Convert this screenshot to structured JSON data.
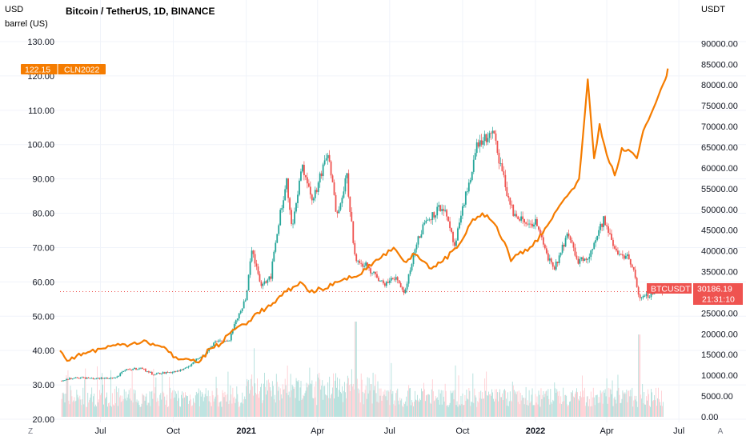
{
  "header": {
    "title": "Bitcoin / TetherUS, 1D, BINANCE",
    "left_currency": "USD",
    "left_unit": "barrel (US)",
    "right_currency": "USDT"
  },
  "footer": {
    "left_button": "Z",
    "right_button": "A"
  },
  "colors": {
    "oil_line": "#f57c00",
    "candle_up": "#26a69a",
    "candle_down": "#ef5350",
    "volume_up": "#b2dfdb",
    "volume_down": "#ffcdd2",
    "grid": "#f0f3fa",
    "axis_text": "#131722",
    "btc_label_bg": "#ef5350",
    "oil_label_bg": "#f57c00"
  },
  "chart_data": {
    "type": "line",
    "title": "Bitcoin / TetherUS, 1D, BINANCE",
    "x_ticks": [
      "Jul",
      "Oct",
      "2021",
      "Apr",
      "Jul",
      "Oct",
      "2022",
      "Apr",
      "Jul"
    ],
    "x_tick_dates": [
      "2020-07-01",
      "2020-10-01",
      "2021-01-01",
      "2021-04-01",
      "2021-07-01",
      "2021-10-01",
      "2022-01-01",
      "2022-04-01",
      "2022-07-01"
    ],
    "x_range": [
      "2020-05-11",
      "2022-07-15"
    ],
    "left_axis": {
      "unit": "USD / barrel (US)",
      "ticks": [
        "130.00",
        "120.00",
        "110.00",
        "100.00",
        "90.00",
        "80.00",
        "70.00",
        "60.00",
        "50.00",
        "40.00",
        "30.00",
        "20.00"
      ],
      "ylim": [
        20,
        130
      ]
    },
    "right_axis": {
      "unit": "USDT",
      "ticks": [
        "90000.00",
        "85000.00",
        "80000.00",
        "75000.00",
        "70000.00",
        "65000.00",
        "60000.00",
        "55000.00",
        "50000.00",
        "45000.00",
        "40000.00",
        "35000.00",
        "30000.00",
        "25000.00",
        "20000.00",
        "15000.00",
        "10000.00",
        "5000.00",
        "0.00"
      ],
      "ylim": [
        0,
        92000
      ]
    },
    "series": [
      {
        "name": "CLN2022",
        "axis": "left",
        "type": "line",
        "last_value": "122.15",
        "points": [
          [
            "2020-05-11",
            40
          ],
          [
            "2020-05-20",
            37
          ],
          [
            "2020-06-01",
            38.5
          ],
          [
            "2020-06-15",
            39.5
          ],
          [
            "2020-07-01",
            40.5
          ],
          [
            "2020-07-20",
            41.5
          ],
          [
            "2020-08-10",
            42
          ],
          [
            "2020-08-25",
            43
          ],
          [
            "2020-09-08",
            41.5
          ],
          [
            "2020-09-22",
            40.5
          ],
          [
            "2020-10-01",
            38
          ],
          [
            "2020-10-20",
            37.5
          ],
          [
            "2020-11-02",
            36.5
          ],
          [
            "2020-11-16",
            40.5
          ],
          [
            "2020-11-30",
            42
          ],
          [
            "2020-12-15",
            46
          ],
          [
            "2021-01-04",
            48.5
          ],
          [
            "2021-01-15",
            51
          ],
          [
            "2021-02-01",
            53
          ],
          [
            "2021-02-15",
            56
          ],
          [
            "2021-03-01",
            58.5
          ],
          [
            "2021-03-10",
            60
          ],
          [
            "2021-03-22",
            57
          ],
          [
            "2021-04-05",
            58
          ],
          [
            "2021-04-20",
            59
          ],
          [
            "2021-05-05",
            61
          ],
          [
            "2021-05-20",
            61.5
          ],
          [
            "2021-06-05",
            65
          ],
          [
            "2021-06-20",
            67
          ],
          [
            "2021-07-06",
            70
          ],
          [
            "2021-07-19",
            66
          ],
          [
            "2021-08-02",
            68
          ],
          [
            "2021-08-20",
            64
          ],
          [
            "2021-09-06",
            66
          ],
          [
            "2021-09-27",
            71
          ],
          [
            "2021-10-11",
            77
          ],
          [
            "2021-10-26",
            80
          ],
          [
            "2021-11-10",
            77
          ],
          [
            "2021-11-26",
            70
          ],
          [
            "2021-12-01",
            66
          ],
          [
            "2021-12-10",
            68
          ],
          [
            "2021-12-22",
            69
          ],
          [
            "2022-01-10",
            74
          ],
          [
            "2022-01-25",
            80
          ],
          [
            "2022-02-10",
            85
          ],
          [
            "2022-02-25",
            90
          ],
          [
            "2022-03-08",
            119
          ],
          [
            "2022-03-16",
            96
          ],
          [
            "2022-03-23",
            106
          ],
          [
            "2022-04-01",
            97
          ],
          [
            "2022-04-11",
            91
          ],
          [
            "2022-04-20",
            99
          ],
          [
            "2022-05-01",
            98
          ],
          [
            "2022-05-09",
            96
          ],
          [
            "2022-05-17",
            104
          ],
          [
            "2022-05-27",
            109
          ],
          [
            "2022-06-08",
            116
          ],
          [
            "2022-06-14",
            119
          ],
          [
            "2022-06-17",
            122.15
          ]
        ]
      },
      {
        "name": "BTCUSDT",
        "axis": "right",
        "type": "candlestick",
        "last_value": "30186.19",
        "countdown": "21:31:10",
        "closes": [
          [
            "2020-05-11",
            8700
          ],
          [
            "2020-06-01",
            9500
          ],
          [
            "2020-06-25",
            9200
          ],
          [
            "2020-07-20",
            9400
          ],
          [
            "2020-08-01",
            11200
          ],
          [
            "2020-08-20",
            11800
          ],
          [
            "2020-09-05",
            10300
          ],
          [
            "2020-09-30",
            10800
          ],
          [
            "2020-10-15",
            11400
          ],
          [
            "2020-10-25",
            13000
          ],
          [
            "2020-11-10",
            15300
          ],
          [
            "2020-11-25",
            18500
          ],
          [
            "2020-12-10",
            18200
          ],
          [
            "2020-12-20",
            23500
          ],
          [
            "2021-01-01",
            29000
          ],
          [
            "2021-01-08",
            40000
          ],
          [
            "2021-01-20",
            32000
          ],
          [
            "2021-02-01",
            34000
          ],
          [
            "2021-02-10",
            46000
          ],
          [
            "2021-02-21",
            57000
          ],
          [
            "2021-02-28",
            45000
          ],
          [
            "2021-03-13",
            61000
          ],
          [
            "2021-03-25",
            52000
          ],
          [
            "2021-04-05",
            58000
          ],
          [
            "2021-04-14",
            63500
          ],
          [
            "2021-04-25",
            49000
          ],
          [
            "2021-05-08",
            58000
          ],
          [
            "2021-05-19",
            37000
          ],
          [
            "2021-06-01",
            36500
          ],
          [
            "2021-06-22",
            32000
          ],
          [
            "2021-07-10",
            33500
          ],
          [
            "2021-07-20",
            29800
          ],
          [
            "2021-08-01",
            40000
          ],
          [
            "2021-08-14",
            47000
          ],
          [
            "2021-09-06",
            51000
          ],
          [
            "2021-09-21",
            41000
          ],
          [
            "2021-10-06",
            54000
          ],
          [
            "2021-10-20",
            66000
          ],
          [
            "2021-11-09",
            68000
          ],
          [
            "2021-11-26",
            54000
          ],
          [
            "2021-12-04",
            49000
          ],
          [
            "2021-12-20",
            46500
          ],
          [
            "2022-01-01",
            47000
          ],
          [
            "2022-01-10",
            42000
          ],
          [
            "2022-01-24",
            35000
          ],
          [
            "2022-02-10",
            44000
          ],
          [
            "2022-02-24",
            37500
          ],
          [
            "2022-03-10",
            39000
          ],
          [
            "2022-03-28",
            47500
          ],
          [
            "2022-04-12",
            40000
          ],
          [
            "2022-04-27",
            38500
          ],
          [
            "2022-05-05",
            36000
          ],
          [
            "2022-05-12",
            28000
          ],
          [
            "2022-05-25",
            29500
          ],
          [
            "2022-06-05",
            31300
          ],
          [
            "2022-06-10",
            30186
          ]
        ]
      }
    ],
    "volume": {
      "axis": "right",
      "ylim": [
        0,
        12000
      ],
      "note": "daily volume histogram, tallest spikes near May 2021 and June 2022"
    },
    "price_line": {
      "value": 30186.19,
      "axis": "right",
      "style": "dotted"
    },
    "grid": true,
    "legend": "top-left"
  }
}
